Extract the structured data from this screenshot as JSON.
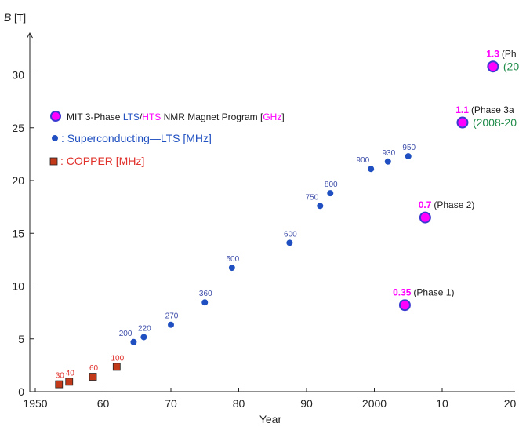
{
  "chart_data": {
    "type": "scatter",
    "ylabel_var": "B",
    "ylabel_unit": "[T]",
    "xlabel": "Year",
    "x_ticks": [
      "1950",
      "60",
      "70",
      "80",
      "90",
      "2000",
      "10",
      "20"
    ],
    "x_tick_values": [
      1950,
      1960,
      1970,
      1980,
      1990,
      2000,
      2010,
      2020
    ],
    "y_ticks": [
      "0",
      "5",
      "10",
      "15",
      "20",
      "25",
      "30"
    ],
    "y_tick_values": [
      0,
      5,
      10,
      15,
      20,
      25,
      30
    ],
    "xlim": [
      1947,
      2020
    ],
    "ylim": [
      0,
      33
    ],
    "grid": false,
    "legend_position": "top-left",
    "legend": {
      "mit": {
        "prefix": "MIT 3-Phase ",
        "lts": "LTS",
        "slash": "/",
        "hts": "HTS",
        "suffix": " NMR Magnet Program  [",
        "unit": "GHz",
        "close": "]"
      },
      "lts": {
        "text": ": Superconducting—LTS [MHz]"
      },
      "copper": {
        "text": ": COPPER [MHz]"
      }
    },
    "colors": {
      "mit_fill": "#ff00ff",
      "mit_edge": "#3a3ad0",
      "lts": "#1f4fc0",
      "lts_label": "#3c4ca8",
      "copper": "#c33a1a",
      "copper_label": "#e0302a",
      "phase_text": "#1a1a1a",
      "phase_year": "#1f8c4a",
      "axis": "#222222"
    },
    "series": [
      {
        "name": "COPPER [MHz]",
        "points": [
          {
            "x": 1953.5,
            "y": 0.7,
            "label": "30"
          },
          {
            "x": 1955,
            "y": 0.94,
            "label": "40"
          },
          {
            "x": 1958.5,
            "y": 1.41,
            "label": "60"
          },
          {
            "x": 1962,
            "y": 2.35,
            "label": "100"
          }
        ]
      },
      {
        "name": "Superconducting—LTS [MHz]",
        "points": [
          {
            "x": 1964.5,
            "y": 4.7,
            "label": "200"
          },
          {
            "x": 1966,
            "y": 5.17,
            "label": "220"
          },
          {
            "x": 1970,
            "y": 6.34,
            "label": "270"
          },
          {
            "x": 1975,
            "y": 8.46,
            "label": "360"
          },
          {
            "x": 1979,
            "y": 11.74,
            "label": "500"
          },
          {
            "x": 1987.5,
            "y": 14.1,
            "label": "600"
          },
          {
            "x": 1992,
            "y": 17.6,
            "label": "750"
          },
          {
            "x": 1993.5,
            "y": 18.8,
            "label": "800"
          },
          {
            "x": 1999.5,
            "y": 21.1,
            "label": "900"
          },
          {
            "x": 2002,
            "y": 21.8,
            "label": "930"
          },
          {
            "x": 2005,
            "y": 22.3,
            "label": "950"
          }
        ]
      },
      {
        "name": "MIT 3-Phase LTS/HTS NMR Magnet Program [GHz]",
        "points": [
          {
            "x": 2004.5,
            "y": 8.2,
            "label": "0.35",
            "note": "(Phase 1)"
          },
          {
            "x": 2007.5,
            "y": 16.5,
            "label": "0.7",
            "note": "(Phase 2)"
          },
          {
            "x": 2013,
            "y": 25.5,
            "label": "1.1",
            "note": "(Phase 3a",
            "years": "(2008-20"
          },
          {
            "x": 2017.5,
            "y": 30.8,
            "label": "1.3",
            "note": "(Ph",
            "years": "(20"
          }
        ]
      }
    ]
  }
}
